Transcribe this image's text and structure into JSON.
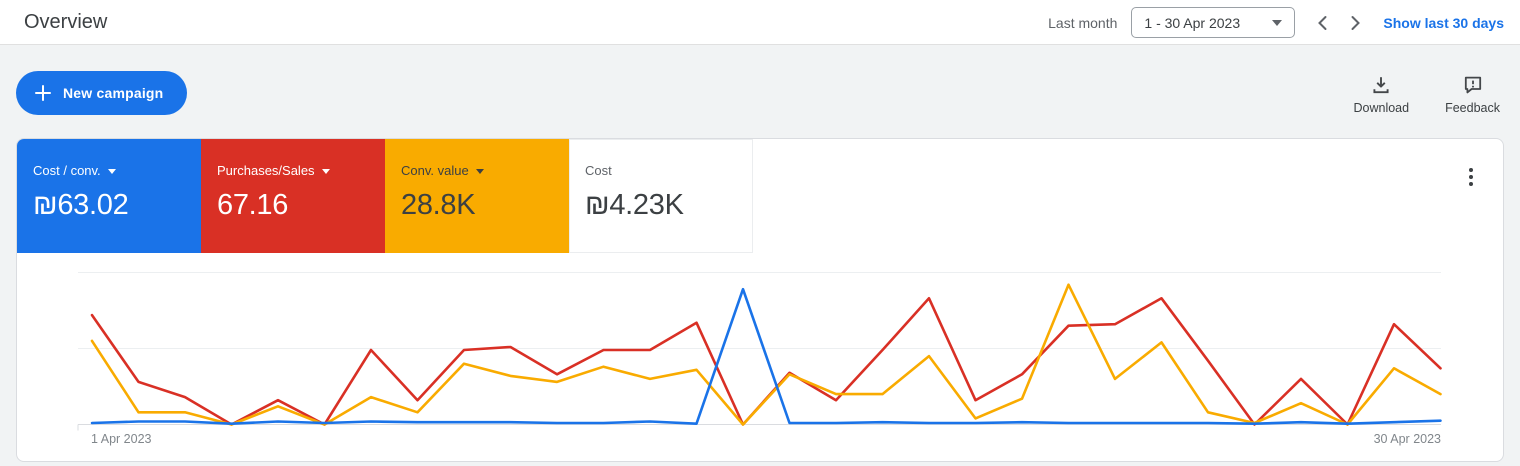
{
  "header": {
    "title": "Overview",
    "period_label": "Last month",
    "period_value": "1 - 30 Apr 2023",
    "show_link": "Show last 30 days"
  },
  "actions": {
    "new_campaign": "New campaign",
    "download": "Download",
    "feedback": "Feedback"
  },
  "colors": {
    "accent_blue": "#1a73e8",
    "scorecard_red": "#d93025",
    "scorecard_yellow": "#f9ab00",
    "dark_text": "#3c4043",
    "gray_text": "#5f6368"
  },
  "scorecards": [
    {
      "label": "Cost / conv.",
      "value": "₪63.02",
      "bg": "#1a73e8",
      "fg": "#ffffff",
      "dropdown": true
    },
    {
      "label": "Purchases/Sales",
      "value": "67.16",
      "bg": "#d93025",
      "fg": "#ffffff",
      "dropdown": true
    },
    {
      "label": "Conv. value",
      "value": "28.8K",
      "bg": "#f9ab00",
      "fg": "#3c4043",
      "dropdown": true
    },
    {
      "label": "Cost",
      "value": "₪4.23K",
      "bg": "#ffffff",
      "fg": "#3c4043",
      "dropdown": false
    }
  ],
  "chart_data": {
    "type": "line",
    "title": "",
    "xlabel": "",
    "ylabel": "",
    "x_axis": {
      "start_label": "1 Apr 2023",
      "end_label": "30 Apr 2023",
      "points": 30,
      "unit": "day of April 2023"
    },
    "y_axis": {
      "labeled": false,
      "gridlines": 3,
      "scale_note": "y-axis has no tick labels in UI; series values below are normalized 0-100 where 100 = top gridline and 0 = baseline"
    },
    "legend_position": "none (colored scorecards act as legend)",
    "grid": true,
    "series": [
      {
        "key": "purchases-sales",
        "name": "Purchases/Sales",
        "color": "#d93025",
        "values": [
          72,
          28,
          18,
          0,
          16,
          0,
          49,
          16,
          49,
          51,
          33,
          49,
          49,
          67,
          0,
          34,
          16,
          49,
          83,
          16,
          33,
          65,
          66,
          83,
          42,
          0,
          30,
          0,
          66,
          37
        ]
      },
      {
        "key": "conv-value",
        "name": "Conv. value",
        "color": "#f9ab00",
        "values": [
          55,
          8,
          8,
          0,
          12,
          0,
          18,
          8,
          40,
          32,
          28,
          38,
          30,
          36,
          0,
          33,
          20,
          20,
          45,
          4,
          17,
          92,
          30,
          54,
          8,
          1,
          14,
          0,
          37,
          20
        ]
      },
      {
        "key": "cost-per-conv",
        "name": "Cost / conv.",
        "color": "#1a73e8",
        "values": [
          1,
          2,
          2,
          0.5,
          2,
          1,
          2,
          1.5,
          1.5,
          1.5,
          1,
          1,
          2,
          0.5,
          89,
          1,
          1,
          1.5,
          1,
          1,
          1.5,
          1,
          1,
          1,
          1,
          0.5,
          1.5,
          0.5,
          1.5,
          2.5
        ]
      }
    ]
  }
}
